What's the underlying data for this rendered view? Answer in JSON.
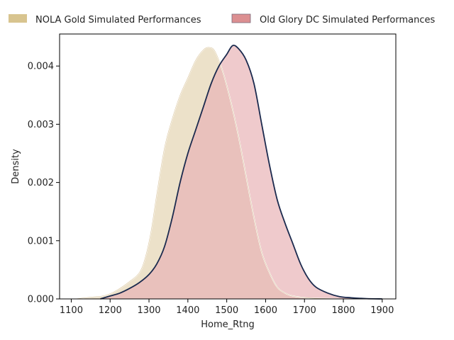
{
  "chart_data": {
    "type": "area",
    "xlabel": "Home_Rtng",
    "ylabel": "Density",
    "xlim": [
      1070,
      1935
    ],
    "ylim": [
      0,
      0.00455
    ],
    "xticks": [
      1100,
      1200,
      1300,
      1400,
      1500,
      1600,
      1700,
      1800,
      1900
    ],
    "xtick_labels": [
      "1100",
      "1200",
      "1300",
      "1400",
      "1500",
      "1600",
      "1700",
      "1800",
      "1900"
    ],
    "yticks": [
      0,
      0.001,
      0.002,
      0.003,
      0.004
    ],
    "ytick_labels": [
      "0.000",
      "0.001",
      "0.002",
      "0.003",
      "0.004"
    ],
    "grid": false,
    "legend_position": "top",
    "series": [
      {
        "name": "NOLA Gold Simulated Performances",
        "fill_color": "#e0cfa8",
        "line_color": "#d2b98a",
        "legend_patch_color": "#d8c48f",
        "x": [
          1110,
          1150,
          1180,
          1200,
          1220,
          1250,
          1275,
          1290,
          1305,
          1320,
          1340,
          1360,
          1380,
          1400,
          1420,
          1440,
          1455,
          1470,
          1490,
          1510,
          1530,
          1550,
          1570,
          1590,
          1610,
          1630,
          1650,
          1670,
          1700,
          1730,
          1760,
          1790
        ],
        "y": [
          0.0,
          3e-05,
          5e-05,
          9e-05,
          0.00016,
          0.0003,
          0.00045,
          0.0007,
          0.00115,
          0.0018,
          0.0026,
          0.0031,
          0.0035,
          0.0038,
          0.0041,
          0.00428,
          0.00432,
          0.00425,
          0.0039,
          0.0034,
          0.0028,
          0.0021,
          0.0014,
          0.0008,
          0.00045,
          0.0002,
          0.0001,
          5e-05,
          2e-05,
          1e-05,
          5e-06,
          0.0
        ]
      },
      {
        "name": "Old Glory DC Simulated Performances",
        "fill_color": "#e8b4b6",
        "line_color": "#1b2a4e",
        "legend_patch_color": "#dc8f91",
        "x": [
          1175,
          1200,
          1225,
          1250,
          1275,
          1300,
          1320,
          1340,
          1360,
          1380,
          1400,
          1420,
          1440,
          1460,
          1480,
          1500,
          1515,
          1530,
          1550,
          1570,
          1590,
          1610,
          1630,
          1650,
          1670,
          1690,
          1710,
          1730,
          1760,
          1790,
          1820,
          1860,
          1900
        ],
        "y": [
          0.0,
          5e-05,
          0.0001,
          0.00018,
          0.00028,
          0.00042,
          0.0006,
          0.0009,
          0.0014,
          0.002,
          0.0025,
          0.0029,
          0.0033,
          0.0037,
          0.004,
          0.0042,
          0.00435,
          0.0043,
          0.0041,
          0.0037,
          0.003,
          0.0023,
          0.0017,
          0.0013,
          0.00095,
          0.0006,
          0.00035,
          0.0002,
          0.0001,
          4e-05,
          2e-05,
          5e-06,
          0.0
        ]
      }
    ]
  }
}
